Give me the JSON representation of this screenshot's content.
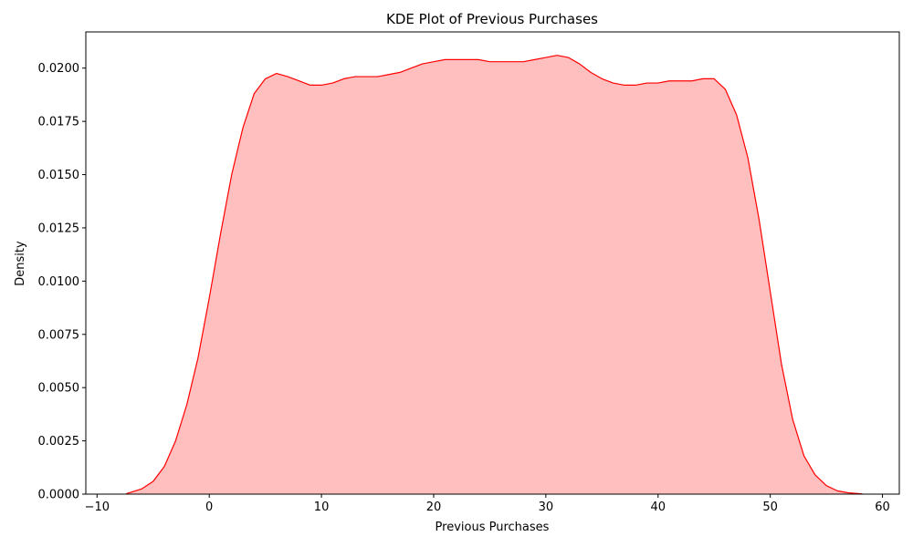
{
  "chart_data": {
    "type": "area",
    "title": "KDE Plot of Previous Purchases",
    "xlabel": "Previous Purchases",
    "ylabel": "Density",
    "xlim": [
      -11,
      61.5
    ],
    "ylim": [
      0,
      0.0217
    ],
    "xticks": [
      -10,
      0,
      10,
      20,
      30,
      40,
      50,
      60
    ],
    "xtick_labels": [
      "−10",
      "0",
      "10",
      "20",
      "30",
      "40",
      "50",
      "60"
    ],
    "yticks": [
      0,
      0.0025,
      0.005,
      0.0075,
      0.01,
      0.0125,
      0.015,
      0.0175,
      0.02
    ],
    "ytick_labels": [
      "0.0000",
      "0.0025",
      "0.0050",
      "0.0075",
      "0.0100",
      "0.0125",
      "0.0150",
      "0.0175",
      "0.0200"
    ],
    "grid": false,
    "colors": {
      "line": "#ff0000",
      "fill": "#ffbfbf"
    },
    "series": [
      {
        "x": [
          -7.4,
          -6,
          -5,
          -4,
          -3,
          -2,
          -1,
          0,
          1,
          2,
          3,
          4,
          5,
          6,
          7,
          8,
          9,
          10,
          11,
          12,
          13,
          14,
          15,
          16,
          17,
          18,
          19,
          20,
          21,
          22,
          23,
          24,
          25,
          26,
          27,
          28,
          29,
          30,
          31,
          32,
          33,
          34,
          35,
          36,
          37,
          38,
          39,
          40,
          41,
          42,
          43,
          44,
          45,
          46,
          47,
          48,
          49,
          50,
          51,
          52,
          53,
          54,
          55,
          56,
          57,
          58.2
        ],
        "y": [
          2e-05,
          0.00025,
          0.0006,
          0.0013,
          0.0025,
          0.0042,
          0.0064,
          0.0092,
          0.0122,
          0.015,
          0.0172,
          0.0188,
          0.0195,
          0.01975,
          0.0196,
          0.0194,
          0.0192,
          0.0192,
          0.0193,
          0.0195,
          0.0196,
          0.0196,
          0.0196,
          0.0197,
          0.0198,
          0.02,
          0.0202,
          0.0203,
          0.0204,
          0.0204,
          0.0204,
          0.0204,
          0.0203,
          0.0203,
          0.0203,
          0.0203,
          0.0204,
          0.0205,
          0.0206,
          0.0205,
          0.0202,
          0.0198,
          0.0195,
          0.0193,
          0.0192,
          0.0192,
          0.0193,
          0.0193,
          0.0194,
          0.0194,
          0.0194,
          0.0195,
          0.0195,
          0.019,
          0.0178,
          0.0158,
          0.0129,
          0.0095,
          0.0061,
          0.0035,
          0.0018,
          0.0009,
          0.0004,
          0.00015,
          6e-05,
          1e-05
        ]
      }
    ]
  }
}
